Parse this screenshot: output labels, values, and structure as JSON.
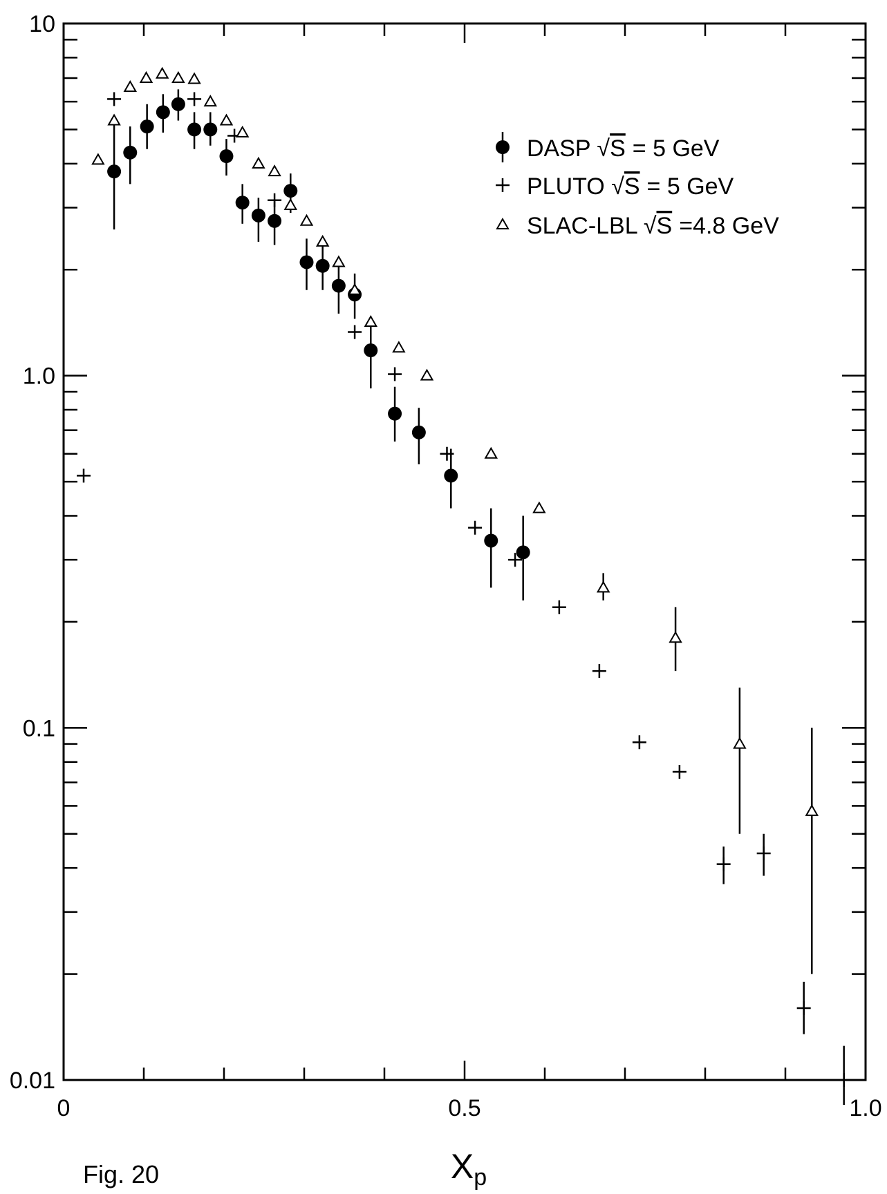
{
  "caption": "Fig. 20",
  "chart_data": {
    "type": "scatter",
    "title": "",
    "xlabel": "X",
    "xlabel_sub": "p",
    "ylabel": "",
    "xlim": [
      0,
      1.0
    ],
    "ylim": [
      0.01,
      10
    ],
    "yscale": "log",
    "grid": false,
    "legend_position": "top-right",
    "x_ticks": [
      {
        "value": 0,
        "label": "0"
      },
      {
        "value": 0.5,
        "label": "0.5"
      },
      {
        "value": 1.0,
        "label": "1.0"
      }
    ],
    "y_ticks": [
      {
        "value": 0.01,
        "label": "0.01"
      },
      {
        "value": 0.1,
        "label": "0.1"
      },
      {
        "value": 1.0,
        "label": "1.0"
      },
      {
        "value": 10,
        "label": "10"
      }
    ],
    "series": [
      {
        "name": "DASP",
        "legend_sqrt": "S",
        "legend_energy": "= 5 GeV",
        "marker": "filled-circle",
        "points": [
          {
            "x": 0.063,
            "y": 3.8,
            "ylo": 2.6,
            "yhi": 5.3
          },
          {
            "x": 0.083,
            "y": 4.3,
            "ylo": 3.5,
            "yhi": 5.1
          },
          {
            "x": 0.104,
            "y": 5.1,
            "ylo": 4.4,
            "yhi": 5.9
          },
          {
            "x": 0.124,
            "y": 5.6,
            "ylo": 4.9,
            "yhi": 6.3
          },
          {
            "x": 0.143,
            "y": 5.9,
            "ylo": 5.3,
            "yhi": 6.5
          },
          {
            "x": 0.163,
            "y": 5.0,
            "ylo": 4.4,
            "yhi": 5.6
          },
          {
            "x": 0.183,
            "y": 5.0,
            "ylo": 4.5,
            "yhi": 5.6
          },
          {
            "x": 0.203,
            "y": 4.2,
            "ylo": 3.7,
            "yhi": 4.7
          },
          {
            "x": 0.223,
            "y": 3.1,
            "ylo": 2.7,
            "yhi": 3.5
          },
          {
            "x": 0.243,
            "y": 2.85,
            "ylo": 2.4,
            "yhi": 3.2
          },
          {
            "x": 0.263,
            "y": 2.75,
            "ylo": 2.35,
            "yhi": 3.15
          },
          {
            "x": 0.283,
            "y": 3.35,
            "ylo": 2.9,
            "yhi": 3.75
          },
          {
            "x": 0.303,
            "y": 2.1,
            "ylo": 1.75,
            "yhi": 2.45
          },
          {
            "x": 0.323,
            "y": 2.05,
            "ylo": 1.75,
            "yhi": 2.35
          },
          {
            "x": 0.343,
            "y": 1.8,
            "ylo": 1.5,
            "yhi": 2.1
          },
          {
            "x": 0.363,
            "y": 1.7,
            "ylo": 1.45,
            "yhi": 1.95
          },
          {
            "x": 0.383,
            "y": 1.18,
            "ylo": 0.92,
            "yhi": 1.45
          },
          {
            "x": 0.413,
            "y": 0.78,
            "ylo": 0.65,
            "yhi": 0.93
          },
          {
            "x": 0.443,
            "y": 0.69,
            "ylo": 0.56,
            "yhi": 0.81
          },
          {
            "x": 0.483,
            "y": 0.52,
            "ylo": 0.42,
            "yhi": 0.62
          },
          {
            "x": 0.533,
            "y": 0.34,
            "ylo": 0.25,
            "yhi": 0.42
          },
          {
            "x": 0.573,
            "y": 0.315,
            "ylo": 0.23,
            "yhi": 0.4
          }
        ]
      },
      {
        "name": "PLUTO",
        "legend_sqrt": "S",
        "legend_energy": "= 5 GeV",
        "marker": "cross",
        "points": [
          {
            "x": 0.025,
            "y": 0.52
          },
          {
            "x": 0.063,
            "y": 6.1
          },
          {
            "x": 0.163,
            "y": 6.1
          },
          {
            "x": 0.213,
            "y": 4.8
          },
          {
            "x": 0.263,
            "y": 3.15
          },
          {
            "x": 0.363,
            "y": 1.33
          },
          {
            "x": 0.413,
            "y": 1.01
          },
          {
            "x": 0.478,
            "y": 0.6
          },
          {
            "x": 0.513,
            "y": 0.37
          },
          {
            "x": 0.563,
            "y": 0.3
          },
          {
            "x": 0.618,
            "y": 0.22
          },
          {
            "x": 0.668,
            "y": 0.145
          },
          {
            "x": 0.718,
            "y": 0.091
          },
          {
            "x": 0.768,
            "y": 0.075
          },
          {
            "x": 0.823,
            "y": 0.041,
            "ylo": 0.036,
            "yhi": 0.046
          },
          {
            "x": 0.873,
            "y": 0.044,
            "ylo": 0.038,
            "yhi": 0.05
          },
          {
            "x": 0.923,
            "y": 0.016,
            "ylo": 0.0135,
            "yhi": 0.019
          },
          {
            "x": 0.973,
            "y": 0.01,
            "ylo": 0.0085,
            "yhi": 0.0125
          }
        ]
      },
      {
        "name": "SLAC-LBL",
        "legend_sqrt": "S",
        "legend_energy": "=4.8 GeV",
        "marker": "open-triangle",
        "points": [
          {
            "x": 0.043,
            "y": 4.1
          },
          {
            "x": 0.063,
            "y": 5.3
          },
          {
            "x": 0.083,
            "y": 6.6
          },
          {
            "x": 0.103,
            "y": 7.0
          },
          {
            "x": 0.123,
            "y": 7.2
          },
          {
            "x": 0.143,
            "y": 7.0
          },
          {
            "x": 0.163,
            "y": 6.95
          },
          {
            "x": 0.183,
            "y": 6.0
          },
          {
            "x": 0.203,
            "y": 5.3
          },
          {
            "x": 0.223,
            "y": 4.9
          },
          {
            "x": 0.243,
            "y": 4.0
          },
          {
            "x": 0.263,
            "y": 3.8
          },
          {
            "x": 0.283,
            "y": 3.05
          },
          {
            "x": 0.303,
            "y": 2.75
          },
          {
            "x": 0.323,
            "y": 2.4
          },
          {
            "x": 0.343,
            "y": 2.1
          },
          {
            "x": 0.363,
            "y": 1.75
          },
          {
            "x": 0.383,
            "y": 1.42
          },
          {
            "x": 0.418,
            "y": 1.2
          },
          {
            "x": 0.453,
            "y": 1.0
          },
          {
            "x": 0.533,
            "y": 0.6
          },
          {
            "x": 0.593,
            "y": 0.42
          },
          {
            "x": 0.673,
            "y": 0.25,
            "ylo": 0.23,
            "yhi": 0.275
          },
          {
            "x": 0.763,
            "y": 0.18,
            "ylo": 0.145,
            "yhi": 0.22
          },
          {
            "x": 0.843,
            "y": 0.09,
            "ylo": 0.05,
            "yhi": 0.13
          },
          {
            "x": 0.933,
            "y": 0.058,
            "ylo": 0.02,
            "yhi": 0.1
          }
        ]
      }
    ]
  }
}
